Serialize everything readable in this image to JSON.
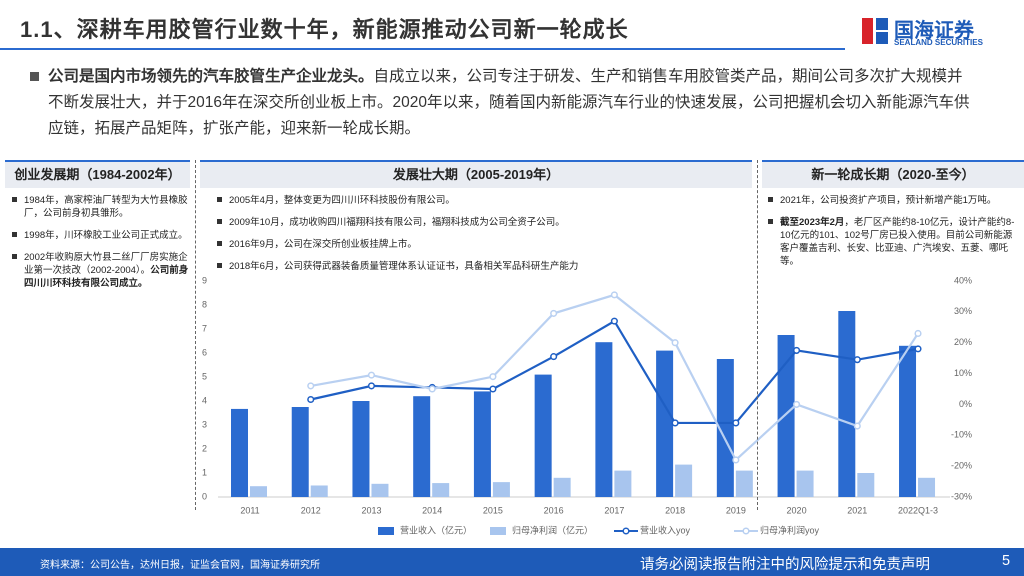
{
  "header": {
    "title": "1.1、深耕车用胶管行业数十年，新能源推动公司新一轮成长",
    "logo_cn": "国海证券",
    "logo_en": "SEALAND SECURITIES"
  },
  "intro": [
    {
      "text": "公司是国内市场领先的汽车胶管生产企业龙头。",
      "bold": true
    },
    {
      "text": "自成立以来，公司专注于研发、生产和销售车用胶管类产品，期间公司多次扩大规模并不断发展壮大，并于2016年在深交所创业板上市。2020年以来，随着国内新能源汽车行业的快速发展，公司把握机会切入新能源汽车供应链，拓展产品矩阵，扩张产能，迎来新一轮成长期。",
      "bold": false
    }
  ],
  "phases": [
    {
      "title": "创业发展期（1984-2002年）",
      "items": [
        [
          {
            "text": "1984年，高家榨油厂转型为大竹县橡胶厂，公司前身初具雏形。",
            "bold": false
          }
        ],
        [
          {
            "text": "1998年，川环橡胶工业公司正式成立。",
            "bold": false
          }
        ],
        [
          {
            "text": "2002年收购原大竹县二丝厂厂房实施企业第一次技改（2002-2004）。",
            "bold": false
          },
          {
            "text": "公司前身四川川环科技有限公司成立。",
            "bold": true
          }
        ]
      ]
    },
    {
      "title": "发展壮大期（2005-2019年）",
      "items": [
        [
          {
            "text": "2005年4月，整体变更为四川川环科技股份有限公司。",
            "bold": false
          }
        ],
        [
          {
            "text": "2009年10月，成功收购四川福翔科技有限公司，福翔科技成为公司全资子公司。",
            "bold": false
          }
        ],
        [
          {
            "text": "2016年9月，公司在深交所创业板挂牌上市。",
            "bold": false
          }
        ],
        [
          {
            "text": "2018年6月，公司获得武器装备质量管理体系认证证书，具备相关军品科研生产能力",
            "bold": false
          }
        ]
      ]
    },
    {
      "title": "新一轮成长期（2020-至今）",
      "items": [
        [
          {
            "text": "2021年，公司投资扩产项目，预计新增产能1万吨。",
            "bold": false
          }
        ],
        [
          {
            "text": "截至2023年2月",
            "bold": true
          },
          {
            "text": "，老厂区产能约8-10亿元，设计产能约8-10亿元的101、102号厂房已投入使用。目前公司新能源客户覆盖吉利、长安、比亚迪、广汽埃安、五菱、哪吒等。",
            "bold": false
          }
        ]
      ]
    }
  ],
  "chart_data": {
    "type": "bar-line",
    "categories": [
      "2011",
      "2012",
      "2013",
      "2014",
      "2015",
      "2016",
      "2017",
      "2018",
      "2019",
      "2020",
      "2021",
      "2022Q1-3"
    ],
    "series": [
      {
        "name": "营业收入（亿元）",
        "type": "bar",
        "color": "#2b6bd0",
        "values": [
          3.67,
          3.75,
          4.0,
          4.2,
          4.4,
          5.1,
          6.45,
          6.1,
          5.75,
          6.75,
          7.75,
          6.3
        ]
      },
      {
        "name": "归母净利润（亿元）",
        "type": "bar",
        "color": "#a8c5ee",
        "values": [
          0.45,
          0.48,
          0.55,
          0.58,
          0.62,
          0.8,
          1.1,
          1.35,
          1.1,
          1.1,
          1.0,
          0.8
        ]
      },
      {
        "name": "营业收入yoy",
        "type": "line",
        "axis": "y2",
        "color": "#1f5fc4",
        "values": [
          null,
          1.6,
          6,
          5.5,
          5,
          15.5,
          27,
          -6,
          -6,
          17.5,
          14.5,
          18
        ]
      },
      {
        "name": "归母净利润yoy",
        "type": "line",
        "axis": "y2",
        "color": "#b9d0f1",
        "values": [
          null,
          6,
          9.5,
          5,
          9,
          29.5,
          35.5,
          20,
          -18,
          0,
          -7,
          23
        ]
      }
    ],
    "ylim": [
      0,
      9
    ],
    "yticks": [
      0,
      1,
      2,
      3,
      4,
      5,
      6,
      7,
      8,
      9
    ],
    "y2lim": [
      -30,
      40
    ],
    "y2ticks": [
      {
        "value": -30,
        "label": "-30%"
      },
      {
        "value": -20,
        "label": "-20%"
      },
      {
        "value": -10,
        "label": "-10%"
      },
      {
        "value": 0,
        "label": "0%"
      },
      {
        "value": 10,
        "label": "10%"
      },
      {
        "value": 20,
        "label": "20%"
      },
      {
        "value": 30,
        "label": "30%"
      },
      {
        "value": 40,
        "label": "40%"
      }
    ],
    "legend": "bottom"
  },
  "footer": {
    "source": "资料来源：公司公告，达州日报，证监会官网，国海证券研究所",
    "disclaimer": "请务必阅读报告附注中的风险提示和免责声明",
    "page": "5"
  }
}
